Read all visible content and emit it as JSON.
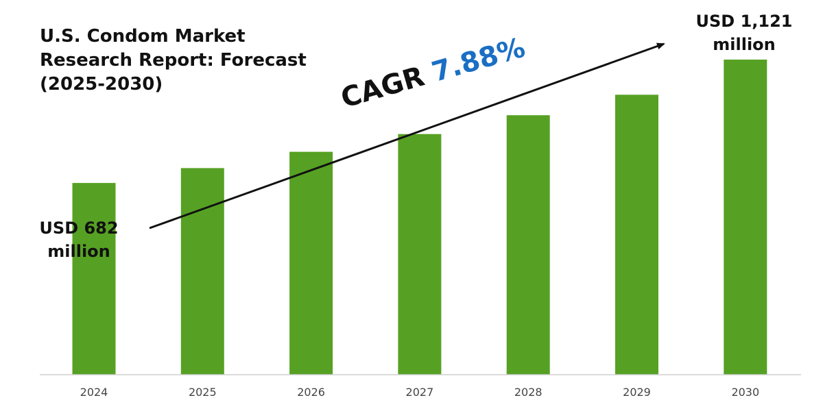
{
  "title_lines": [
    "U.S. Condom Market",
    "Research Report: Forecast",
    "(2025-2030)"
  ],
  "start_annotation": {
    "line1": "USD 682",
    "line2": "million"
  },
  "end_annotation": {
    "line1": "USD 1,121",
    "line2": "million"
  },
  "cagr": {
    "label": "CAGR",
    "value": "7.88%"
  },
  "colors": {
    "bar": "#56a123",
    "axis": "#cfcfcf",
    "arrow": "#111111",
    "cagr_value": "#1a6fc4"
  },
  "chart_data": {
    "type": "bar",
    "categories": [
      "2024",
      "2025",
      "2026",
      "2027",
      "2028",
      "2029",
      "2030"
    ],
    "values": [
      682,
      735,
      793,
      856,
      923,
      996,
      1121
    ],
    "title": "U.S. Condom Market Research Report: Forecast (2025-2030)",
    "xlabel": "",
    "ylabel": "",
    "ylim": [
      0,
      1121
    ],
    "grid": false,
    "legend": "none"
  }
}
